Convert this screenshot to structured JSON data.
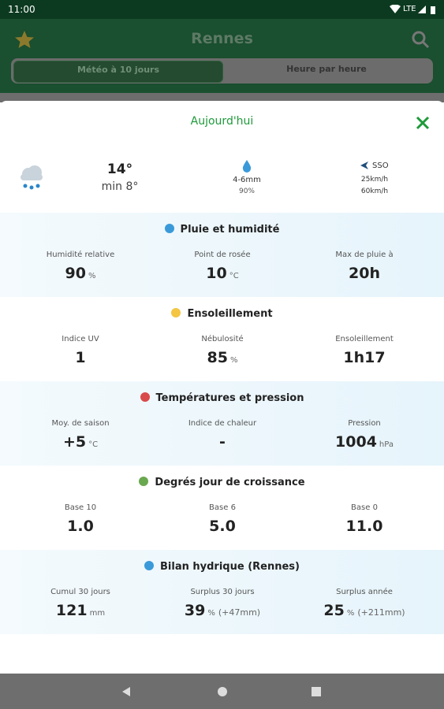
{
  "status": {
    "time": "11:00",
    "network": "LTE"
  },
  "header": {
    "title": "Rennes",
    "tabs": [
      "Météo à 10 jours",
      "Heure par heure"
    ]
  },
  "modal": {
    "title": "Aujourd'hui",
    "summary": {
      "temp": "14°",
      "min": "min 8°",
      "rain": "4-6mm",
      "rain_probability": "90%",
      "wind_direction": "SSO",
      "wind": "25km/h",
      "gust": "60km/h"
    },
    "sections": [
      {
        "title": "Pluie et humidité",
        "items": [
          {
            "label": "Humidité relative",
            "value": "90",
            "unit": "%"
          },
          {
            "label": "Point de rosée",
            "value": "10",
            "unit": "°C"
          },
          {
            "label": "Max de pluie à",
            "value": "20h"
          }
        ]
      },
      {
        "title": "Ensoleillement",
        "items": [
          {
            "label": "Indice UV",
            "value": "1"
          },
          {
            "label": "Nébulosité",
            "value": "85",
            "unit": "%"
          },
          {
            "label": "Ensoleillement",
            "value": "1h17"
          }
        ]
      },
      {
        "title": "Températures et pression",
        "items": [
          {
            "label": "Moy. de saison",
            "value": "+5",
            "unit": "°C"
          },
          {
            "label": "Indice de chaleur",
            "value": "-"
          },
          {
            "label": "Pression",
            "value": "1004",
            "unit": "hPa"
          }
        ]
      },
      {
        "title": "Degrés jour de croissance",
        "items": [
          {
            "label": "Base 10",
            "value": "1.0"
          },
          {
            "label": "Base 6",
            "value": "5.0"
          },
          {
            "label": "Base 0",
            "value": "11.0"
          }
        ]
      },
      {
        "title": "Bilan hydrique (Rennes)",
        "items": [
          {
            "label": "Cumul 30 jours",
            "value": "121",
            "unit": "mm"
          },
          {
            "label": "Surplus 30 jours",
            "value": "39",
            "unit": "%",
            "extra": "(+47mm)"
          },
          {
            "label": "Surplus année",
            "value": "25",
            "unit": "%",
            "extra": "(+211mm)"
          }
        ]
      }
    ]
  }
}
